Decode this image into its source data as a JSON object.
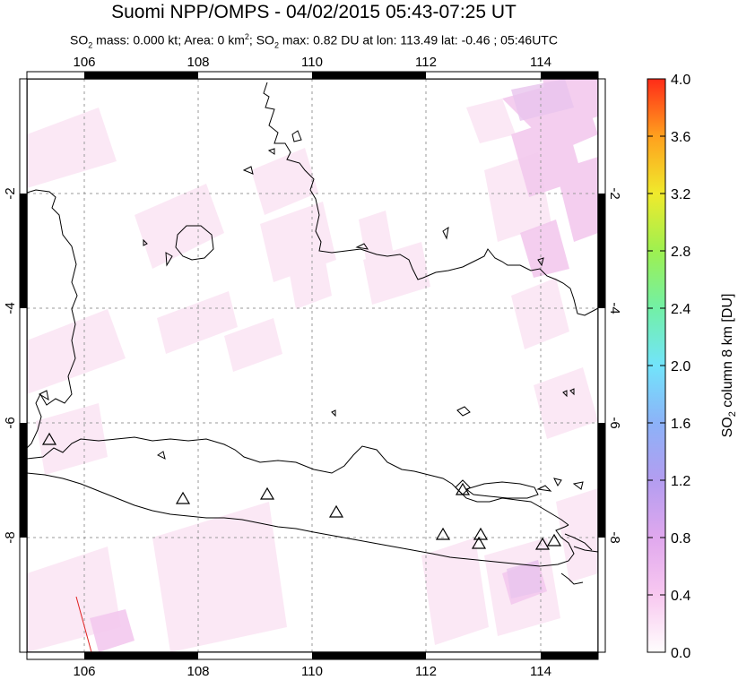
{
  "title": "Suomi NPP/OMPS - 04/02/2015 05:43-07:25 UT",
  "subtitle": {
    "part1": "SO",
    "sub1": "2",
    "part2": " mass: 0.000 kt; Area: 0 km",
    "sup1": "2",
    "part3": "; SO",
    "sub2": "2",
    "part4": " max: 0.82 DU at lon: 113.49 lat: -0.46 ; 05:46UTC"
  },
  "map": {
    "lon_ticks": [
      "106",
      "108",
      "110",
      "112",
      "114"
    ],
    "lat_ticks": [
      "-2",
      "-4",
      "-6",
      "-8"
    ],
    "lon_range": [
      105,
      115
    ],
    "lat_range": [
      -10,
      0
    ],
    "volcano_count": 10
  },
  "colorbar": {
    "ticks": [
      "4.0",
      "3.6",
      "3.2",
      "2.8",
      "2.4",
      "2.0",
      "1.6",
      "1.2",
      "0.8",
      "0.4",
      "0.0"
    ],
    "label_pre": "SO",
    "label_sub": "2",
    "label_post": " column 8 km [DU]",
    "range": [
      0,
      4
    ],
    "colors": [
      "#fffdfd",
      "#f8c8f0",
      "#c9a0ee",
      "#9f9ff0",
      "#79c4ff",
      "#6ff2f6",
      "#7df36f",
      "#d6f13c",
      "#ffd21e",
      "#ff8d1d",
      "#ff2b18"
    ]
  }
}
